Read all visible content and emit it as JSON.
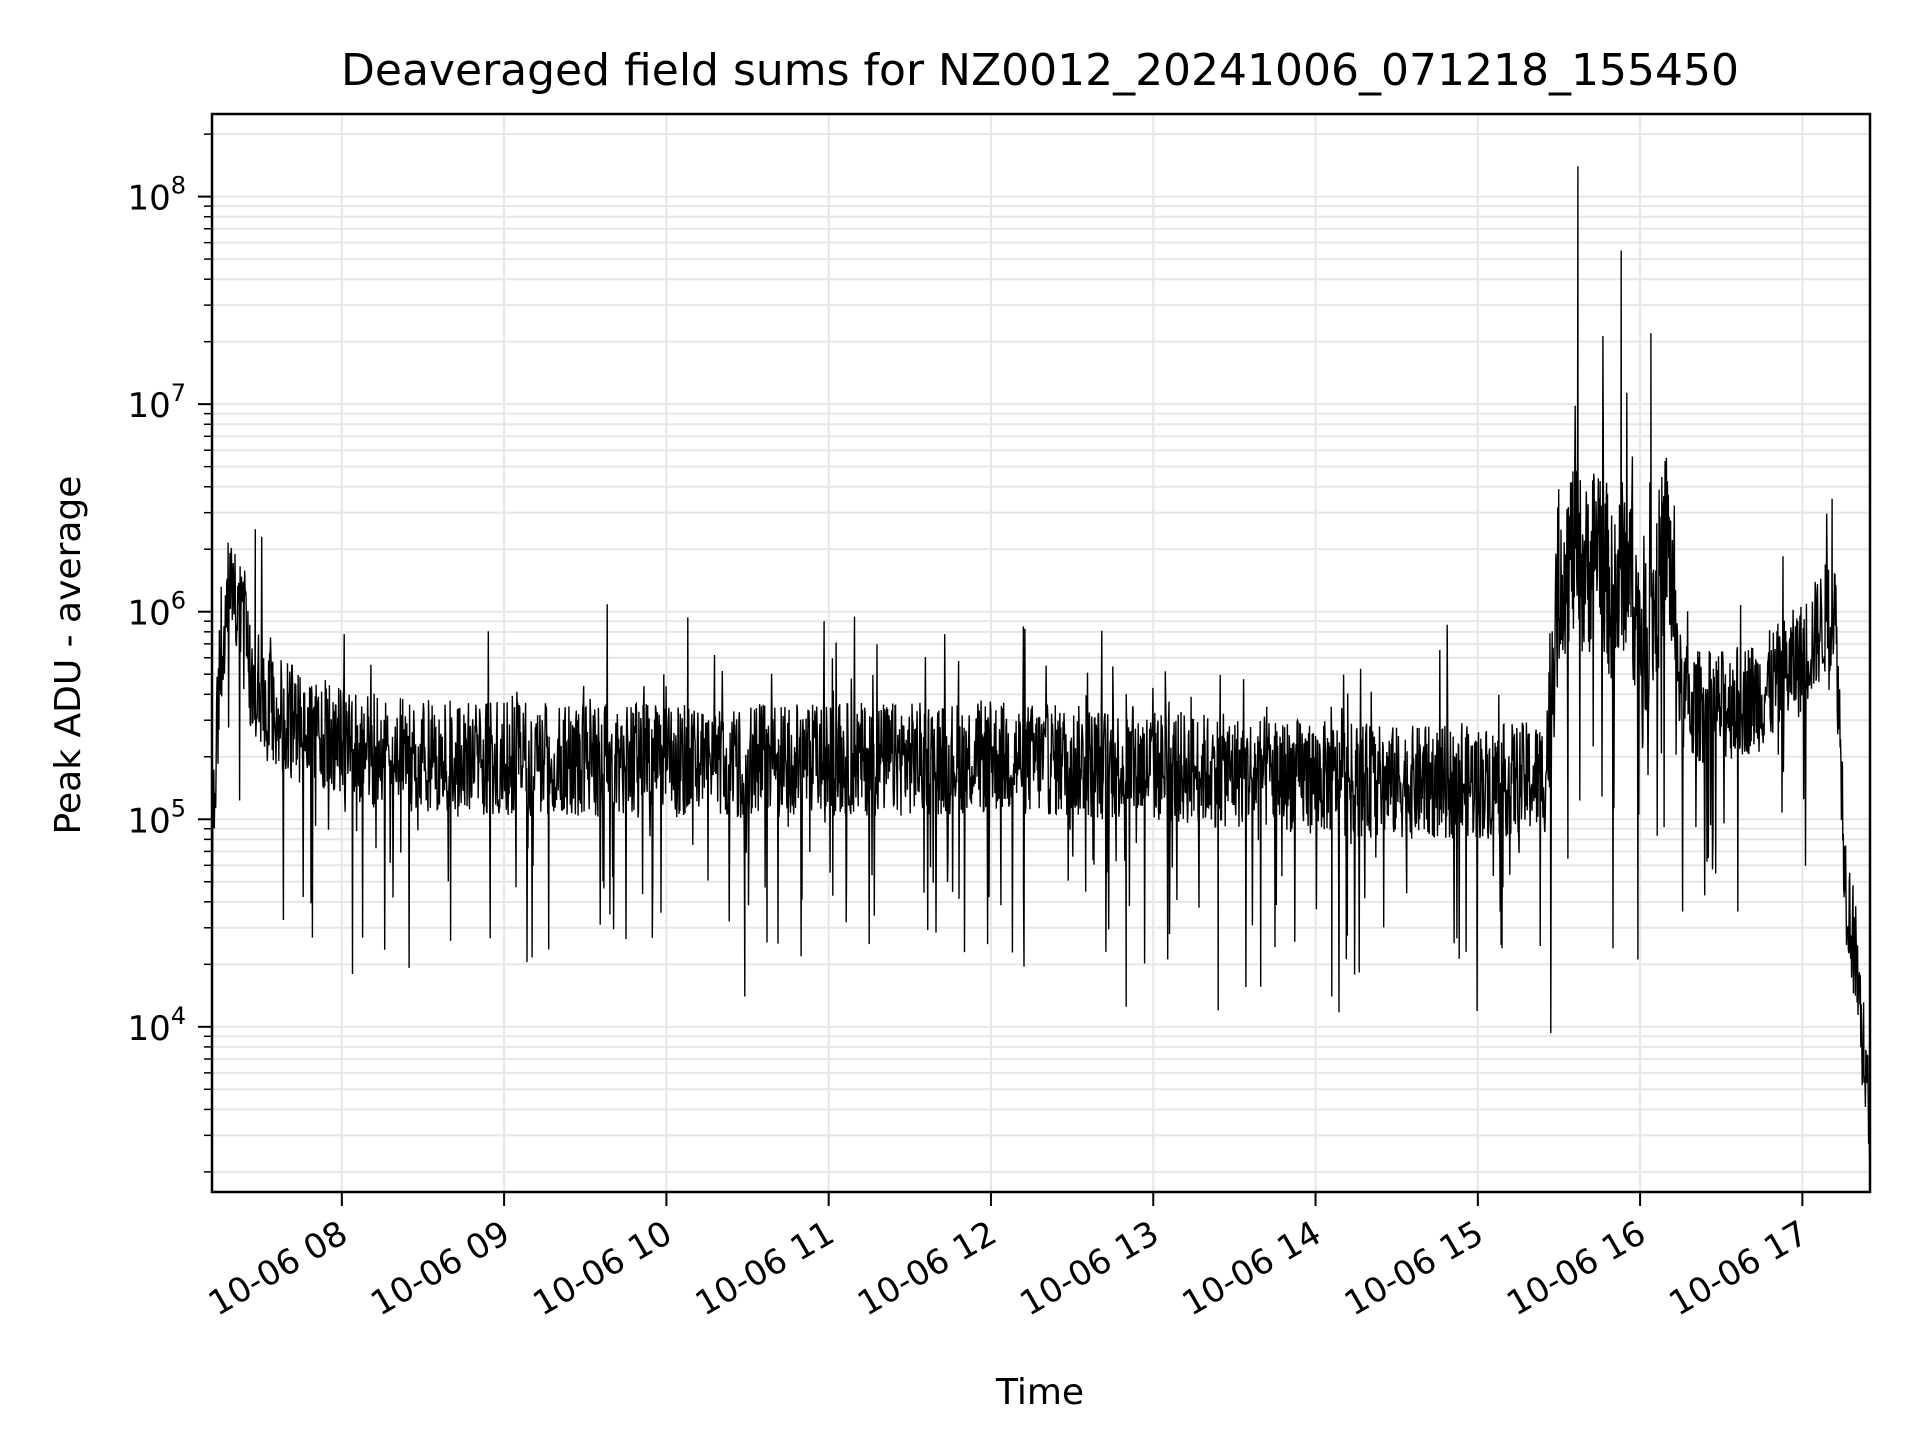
{
  "chart_data": {
    "type": "line",
    "title": "Deaveraged field sums for NZ0012_20241006_071218_155450",
    "xlabel": "Time",
    "ylabel": "Peak ADU - average",
    "y_scale": "log",
    "ylim": [
      1600,
      250000000
    ],
    "xlim": [
      "2024-10-06 07:12",
      "2024-10-06 17:25"
    ],
    "grid": true,
    "series_color": "#000000",
    "grid_color": "#e6e6e6",
    "x_ticks": [
      {
        "value": "2024-10-06 08:00",
        "label": "10-06 08"
      },
      {
        "value": "2024-10-06 09:00",
        "label": "10-06 09"
      },
      {
        "value": "2024-10-06 10:00",
        "label": "10-06 10"
      },
      {
        "value": "2024-10-06 11:00",
        "label": "10-06 11"
      },
      {
        "value": "2024-10-06 12:00",
        "label": "10-06 12"
      },
      {
        "value": "2024-10-06 13:00",
        "label": "10-06 13"
      },
      {
        "value": "2024-10-06 14:00",
        "label": "10-06 14"
      },
      {
        "value": "2024-10-06 15:00",
        "label": "10-06 15"
      },
      {
        "value": "2024-10-06 16:00",
        "label": "10-06 16"
      },
      {
        "value": "2024-10-06 17:00",
        "label": "10-06 17"
      }
    ],
    "y_ticks": [
      {
        "value": 10000,
        "base": "10",
        "exp": "4"
      },
      {
        "value": 100000,
        "base": "10",
        "exp": "5"
      },
      {
        "value": 1000000,
        "base": "10",
        "exp": "6"
      },
      {
        "value": 10000000,
        "base": "10",
        "exp": "7"
      },
      {
        "value": 100000000,
        "base": "10",
        "exp": "8"
      }
    ],
    "series": [
      {
        "x": [
          "2024-10-06 07:12",
          "2024-10-06 07:15",
          "2024-10-06 07:18",
          "2024-10-06 07:20",
          "2024-10-06 07:23",
          "2024-10-06 07:26",
          "2024-10-06 07:30",
          "2024-10-06 07:33",
          "2024-10-06 07:36",
          "2024-10-06 07:40",
          "2024-10-06 07:45",
          "2024-10-06 07:50",
          "2024-10-06 07:55",
          "2024-10-06 08:00",
          "2024-10-06 08:15",
          "2024-10-06 08:30",
          "2024-10-06 08:45",
          "2024-10-06 09:00",
          "2024-10-06 09:30",
          "2024-10-06 10:00",
          "2024-10-06 10:30",
          "2024-10-06 11:00",
          "2024-10-06 11:30",
          "2024-10-06 12:00",
          "2024-10-06 12:30",
          "2024-10-06 13:00",
          "2024-10-06 13:30",
          "2024-10-06 14:00",
          "2024-10-06 14:30",
          "2024-10-06 15:00",
          "2024-10-06 15:25",
          "2024-10-06 15:30",
          "2024-10-06 15:35",
          "2024-10-06 15:40",
          "2024-10-06 15:45",
          "2024-10-06 15:50",
          "2024-10-06 15:55",
          "2024-10-06 16:00",
          "2024-10-06 16:05",
          "2024-10-06 16:10",
          "2024-10-06 16:15",
          "2024-10-06 16:20",
          "2024-10-06 16:30",
          "2024-10-06 16:45",
          "2024-10-06 17:00",
          "2024-10-06 17:08",
          "2024-10-06 17:12",
          "2024-10-06 17:16",
          "2024-10-06 17:20",
          "2024-10-06 17:25"
        ],
        "y": [
          70000,
          600000,
          1200000,
          1100000,
          900000,
          500000,
          400000,
          350000,
          320000,
          300000,
          280000,
          260000,
          250000,
          230000,
          210000,
          200000,
          200000,
          195000,
          195000,
          190000,
          190000,
          195000,
          195000,
          200000,
          190000,
          180000,
          170000,
          160000,
          150000,
          150000,
          160000,
          1500000,
          2000000,
          1500000,
          2500000,
          1000000,
          2000000,
          800000,
          1000000,
          2500000,
          400000,
          350000,
          350000,
          400000,
          600000,
          900000,
          1100000,
          50000,
          20000,
          3000
        ]
      }
    ],
    "spikes_max": [
      {
        "x": "2024-10-06 07:28",
        "y": 2500000
      },
      {
        "x": "2024-10-06 12:12",
        "y": 850000
      },
      {
        "x": "2024-10-06 15:37",
        "y": 140000000
      },
      {
        "x": "2024-10-06 15:53",
        "y": 55000000
      },
      {
        "x": "2024-10-06 16:04",
        "y": 22000000
      },
      {
        "x": "2024-10-06 17:11",
        "y": 3500000
      }
    ],
    "spikes_min": [
      {
        "x": "2024-10-06 10:29",
        "y": 14000
      },
      {
        "x": "2024-10-06 12:50",
        "y": 12500
      },
      {
        "x": "2024-10-06 13:24",
        "y": 12000
      },
      {
        "x": "2024-10-06 14:06",
        "y": 14000
      },
      {
        "x": "2024-10-06 17:23",
        "y": 5500
      }
    ]
  }
}
